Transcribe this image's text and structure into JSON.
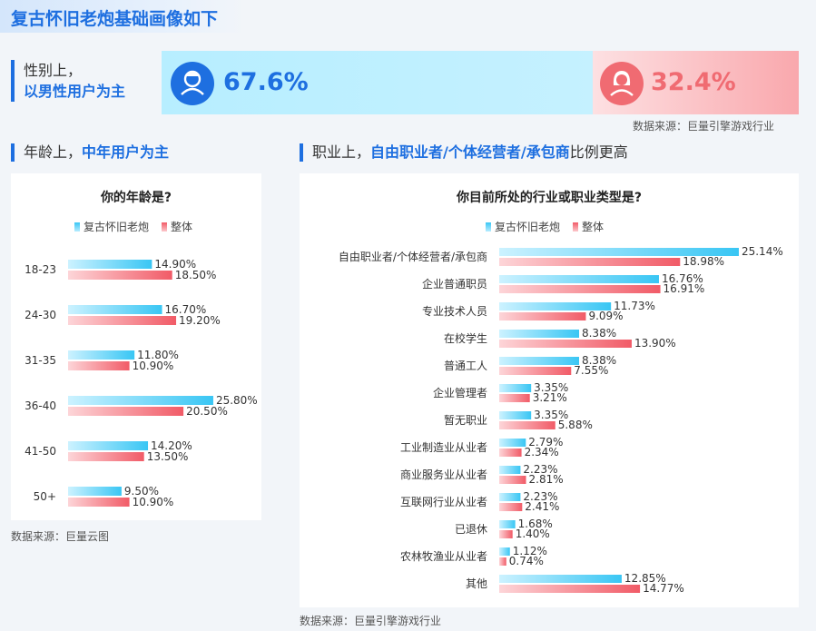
{
  "page_title": "复古怀旧老炮基础画像如下",
  "gender": {
    "label_line1": "性别上，",
    "label_line2": "以男性用户为主",
    "male_pct": "67.6%",
    "female_pct": "32.4%",
    "male_fraction": 0.676,
    "source": "数据来源：巨量引擎游戏行业"
  },
  "age_section": {
    "title_prefix": "年龄上，",
    "title_highlight": "中年用户为主"
  },
  "job_section": {
    "title_prefix": "职业上，",
    "title_highlight": "自由职业者/个体经营者/承包商",
    "title_suffix": "比例更高"
  },
  "colors": {
    "accent": "#1e6fe0",
    "series_a": "#39c6f4",
    "series_b": "#f15b67"
  },
  "legend": {
    "series_a": "复古怀旧老炮",
    "series_b": "整体"
  },
  "age_source": "数据来源：巨量云图",
  "job_source": "数据来源：巨量引擎游戏行业",
  "chart_data": [
    {
      "type": "bar",
      "orientation": "horizontal",
      "title": "你的年龄是?",
      "categories": [
        "18-23",
        "24-30",
        "31-35",
        "36-40",
        "41-50",
        "50+"
      ],
      "series": [
        {
          "name": "复古怀旧老炮",
          "values": [
            14.9,
            16.7,
            11.8,
            25.8,
            14.2,
            9.5
          ],
          "labels": [
            "14.90%",
            "16.70%",
            "11.80%",
            "25.80%",
            "14.20%",
            "9.50%"
          ]
        },
        {
          "name": "整体",
          "values": [
            18.5,
            19.2,
            10.9,
            20.5,
            13.5,
            10.9
          ],
          "labels": [
            "18.50%",
            "19.20%",
            "10.90%",
            "20.50%",
            "13.50%",
            "10.90%"
          ]
        }
      ],
      "legend_position": "top",
      "grid": false
    },
    {
      "type": "bar",
      "orientation": "horizontal",
      "title": "你目前所处的行业或职业类型是?",
      "categories": [
        "自由职业者/个体经营者/承包商",
        "企业普通职员",
        "专业技术人员",
        "在校学生",
        "普通工人",
        "企业管理者",
        "暂无职业",
        "工业制造业从业者",
        "商业服务业从业者",
        "互联网行业从业者",
        "已退休",
        "农林牧渔业从业者",
        "其他"
      ],
      "series": [
        {
          "name": "复古怀旧老炮",
          "values": [
            25.14,
            16.76,
            11.73,
            8.38,
            8.38,
            3.35,
            3.35,
            2.79,
            2.23,
            2.23,
            1.68,
            1.12,
            12.85
          ],
          "labels": [
            "25.14%",
            "16.76%",
            "11.73%",
            "8.38%",
            "8.38%",
            "3.35%",
            "3.35%",
            "2.79%",
            "2.23%",
            "2.23%",
            "1.68%",
            "1.12%",
            "12.85%"
          ]
        },
        {
          "name": "整体",
          "values": [
            18.98,
            16.91,
            9.09,
            13.9,
            7.55,
            3.21,
            5.88,
            2.34,
            2.81,
            2.41,
            1.4,
            0.74,
            14.77
          ],
          "labels": [
            "18.98%",
            "16.91%",
            "9.09%",
            "13.90%",
            "7.55%",
            "3.21%",
            "5.88%",
            "2.34%",
            "2.81%",
            "2.41%",
            "1.40%",
            "0.74%",
            "14.77%"
          ]
        }
      ],
      "legend_position": "top",
      "grid": false
    }
  ]
}
